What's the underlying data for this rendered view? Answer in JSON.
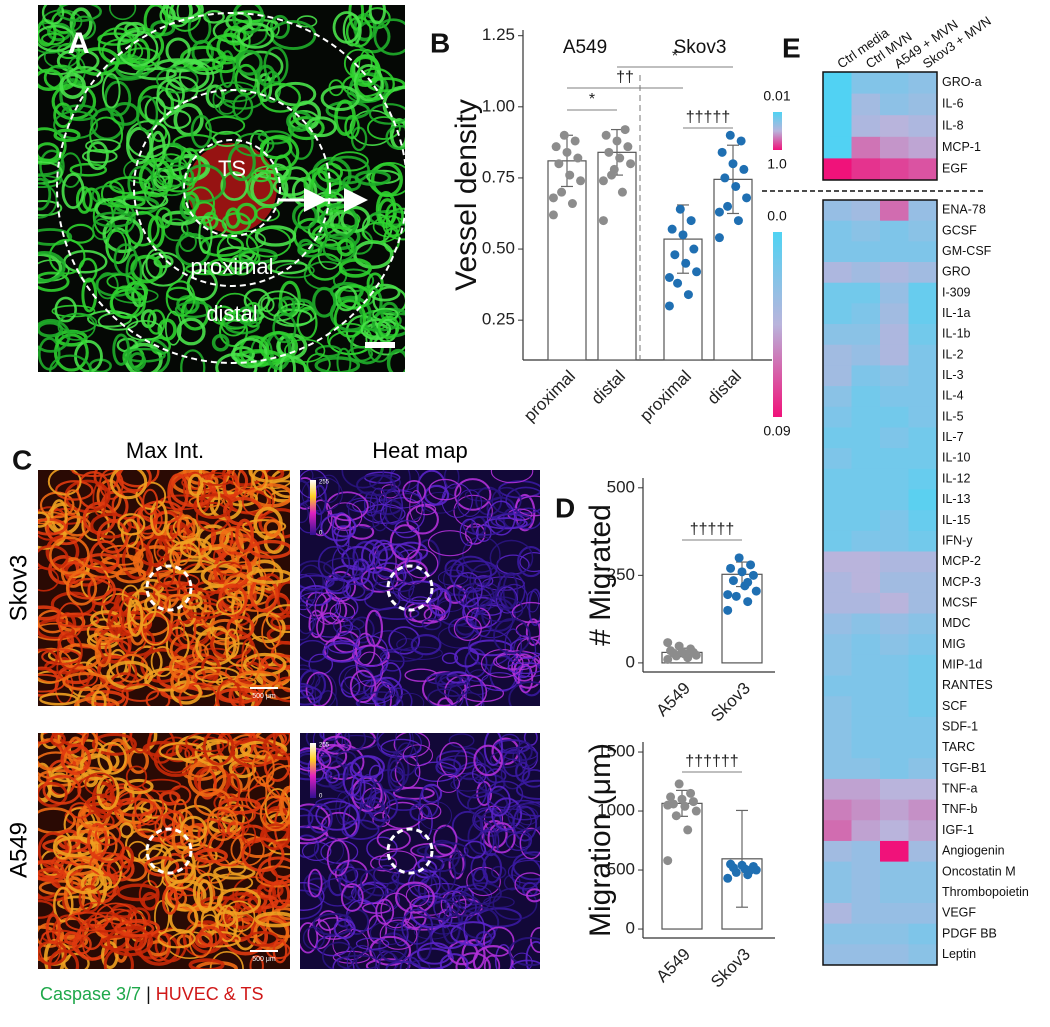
{
  "panel_a": {
    "label": "A",
    "center_label": "TS",
    "ring_labels": [
      "proximal",
      "distal"
    ]
  },
  "panel_c": {
    "label": "C",
    "columns": [
      "Max Int.",
      "Heat map"
    ],
    "rows": [
      {
        "name": "Skov3",
        "scale_bar": "500 μm",
        "heat_ticks": [
          "255",
          "0"
        ]
      },
      {
        "name": "A549",
        "scale_bar": "500 μm",
        "heat_ticks": [
          "255",
          "0"
        ]
      }
    ],
    "caption": [
      "Caspase 3/7",
      " | ",
      "HUVEC & TS"
    ]
  },
  "chart_data": [
    {
      "label": "B",
      "type": "bar",
      "ylabel": "Vessel density",
      "groups": [
        "A549",
        "Skov3"
      ],
      "categories": [
        "proximal",
        "distal",
        "proximal",
        "distal"
      ],
      "values": [
        0.81,
        0.84,
        0.535,
        0.745
      ],
      "errors": [
        0.09,
        0.08,
        0.12,
        0.12
      ],
      "points": [
        [
          0.62,
          0.66,
          0.7,
          0.74,
          0.76,
          0.8,
          0.82,
          0.84,
          0.86,
          0.88,
          0.9,
          0.68
        ],
        [
          0.6,
          0.7,
          0.76,
          0.8,
          0.82,
          0.84,
          0.86,
          0.88,
          0.9,
          0.92,
          0.78,
          0.74
        ],
        [
          0.3,
          0.34,
          0.38,
          0.42,
          0.45,
          0.48,
          0.5,
          0.55,
          0.57,
          0.6,
          0.64,
          0.4
        ],
        [
          0.54,
          0.6,
          0.65,
          0.68,
          0.72,
          0.75,
          0.78,
          0.8,
          0.84,
          0.88,
          0.9,
          0.63
        ]
      ],
      "color": "#ffffff",
      "point_colors": [
        "#8c8c8c",
        "#8c8c8c",
        "#1f6fb2",
        "#1f6fb2"
      ],
      "annotations": [
        "*",
        "††",
        "*",
        "†††††"
      ],
      "ylim": [
        0.11,
        1.27
      ],
      "yticks": [
        0.25,
        {
          "value": 0.5,
          "label": "0.50"
        },
        0.75,
        {
          "value": 1,
          "label": "1.00"
        },
        1.25
      ]
    },
    {
      "label": "D",
      "type": "bar",
      "ylabel": "# Migrated",
      "categories": [
        "A549",
        "Skov3"
      ],
      "values": [
        30,
        253
      ],
      "errors": [
        12,
        35
      ],
      "points": [
        [
          10,
          15,
          20,
          22,
          25,
          28,
          30,
          32,
          35,
          40,
          48,
          58
        ],
        [
          150,
          175,
          190,
          205,
          220,
          235,
          250,
          260,
          270,
          280,
          300,
          195,
          230
        ]
      ],
      "color": "#ffffff",
      "point_colors": [
        "#8c8c8c",
        "#1f6fb2"
      ],
      "annotations": [
        "†††††"
      ],
      "ylim": [
        -26,
        528
      ],
      "yticks": [
        0,
        250,
        500
      ]
    },
    {
      "type": "bar",
      "ylabel": "Migration (μm)",
      "categories": [
        "A549",
        "Skov3"
      ],
      "values": [
        1065,
        595
      ],
      "errors": [
        110,
        410
      ],
      "points": [
        [
          580,
          840,
          960,
          1000,
          1040,
          1060,
          1080,
          1100,
          1120,
          1150,
          1230,
          1050
        ],
        [
          430,
          460,
          480,
          500,
          510,
          520,
          530,
          540,
          550,
          500
        ]
      ],
      "color": "#ffffff",
      "point_colors": [
        "#8c8c8c",
        "#1f6fb2"
      ],
      "annotations": [
        "††††††"
      ],
      "ylim": [
        -76,
        1585
      ],
      "yticks": [
        0,
        500,
        1000,
        1500
      ]
    },
    {
      "label": "E",
      "type": "heatmap",
      "x": [
        "Ctrl media",
        "Ctrl MVN",
        "A549 + MVN",
        "Skov3 + MVN"
      ],
      "colors": [
        "#4fd3f3",
        "#b9b4dc",
        "#f0127a"
      ],
      "panels": [
        {
          "rows": [
            "GRO-a",
            "IL-6",
            "IL-8",
            "MCP-1",
            "EGF"
          ],
          "values": [
            [
              0.02,
              0.25,
              0.25,
              0.3
            ],
            [
              0.02,
              0.4,
              0.3,
              0.35
            ],
            [
              0.02,
              0.45,
              0.5,
              0.45
            ],
            [
              0.02,
              0.7,
              0.6,
              0.55
            ],
            [
              1.0,
              0.9,
              0.85,
              0.8
            ]
          ],
          "zlim": [
            0.01,
            1.0
          ],
          "zticks": [
            0.01,
            {
              "value": 1.0,
              "label": "1.0"
            }
          ]
        },
        {
          "rows": [
            "ENA-78",
            "GCSF",
            "GM-CSF",
            "GRO",
            "I-309",
            "IL-1a",
            "IL-1b",
            "IL-2",
            "IL-3",
            "IL-4",
            "IL-5",
            "IL-7",
            "IL-10",
            "IL-12",
            "IL-13",
            "IL-15",
            "IFN-y",
            "MCP-2",
            "MCP-3",
            "MCSF",
            "MDC",
            "MIG",
            "MIP-1d",
            "RANTES",
            "SCF",
            "SDF-1",
            "TARC",
            "TGF-B1",
            "TNF-a",
            "TNF-b",
            "IGF-1",
            "Angiogenin",
            "Oncostatin M",
            "Thrombopoietin",
            "VEGF",
            "PDGF BB",
            "Leptin"
          ],
          "values": [
            [
              0.03,
              0.035,
              0.065,
              0.03
            ],
            [
              0.02,
              0.025,
              0.02,
              0.025
            ],
            [
              0.02,
              0.02,
              0.02,
              0.02
            ],
            [
              0.04,
              0.035,
              0.04,
              0.035
            ],
            [
              0.015,
              0.015,
              0.03,
              0.01
            ],
            [
              0.015,
              0.02,
              0.035,
              0.01
            ],
            [
              0.025,
              0.025,
              0.04,
              0.015
            ],
            [
              0.035,
              0.03,
              0.04,
              0.02
            ],
            [
              0.035,
              0.02,
              0.025,
              0.02
            ],
            [
              0.025,
              0.015,
              0.02,
              0.02
            ],
            [
              0.02,
              0.015,
              0.015,
              0.02
            ],
            [
              0.015,
              0.015,
              0.02,
              0.015
            ],
            [
              0.02,
              0.015,
              0.015,
              0.015
            ],
            [
              0.015,
              0.015,
              0.015,
              0.01
            ],
            [
              0.015,
              0.015,
              0.015,
              0.005
            ],
            [
              0.015,
              0.015,
              0.02,
              0.01
            ],
            [
              0.015,
              0.02,
              0.02,
              0.015
            ],
            [
              0.045,
              0.045,
              0.04,
              0.04
            ],
            [
              0.04,
              0.045,
              0.035,
              0.035
            ],
            [
              0.04,
              0.04,
              0.045,
              0.035
            ],
            [
              0.03,
              0.025,
              0.03,
              0.025
            ],
            [
              0.025,
              0.02,
              0.025,
              0.02
            ],
            [
              0.025,
              0.02,
              0.02,
              0.015
            ],
            [
              0.02,
              0.02,
              0.02,
              0.015
            ],
            [
              0.025,
              0.02,
              0.02,
              0.015
            ],
            [
              0.025,
              0.02,
              0.02,
              0.02
            ],
            [
              0.025,
              0.02,
              0.02,
              0.02
            ],
            [
              0.025,
              0.025,
              0.02,
              0.025
            ],
            [
              0.05,
              0.05,
              0.045,
              0.045
            ],
            [
              0.06,
              0.055,
              0.05,
              0.055
            ],
            [
              0.065,
              0.05,
              0.045,
              0.05
            ],
            [
              0.035,
              0.03,
              0.09,
              0.035
            ],
            [
              0.025,
              0.03,
              0.025,
              0.025
            ],
            [
              0.025,
              0.03,
              0.025,
              0.025
            ],
            [
              0.04,
              0.03,
              0.03,
              0.03
            ],
            [
              0.025,
              0.025,
              0.025,
              0.02
            ],
            [
              0.03,
              0.03,
              0.03,
              0.025
            ]
          ],
          "zlim": [
            0,
            0.09
          ],
          "zticks": [
            {
              "value": 0,
              "label": "0.0"
            },
            0.09
          ]
        }
      ]
    }
  ]
}
